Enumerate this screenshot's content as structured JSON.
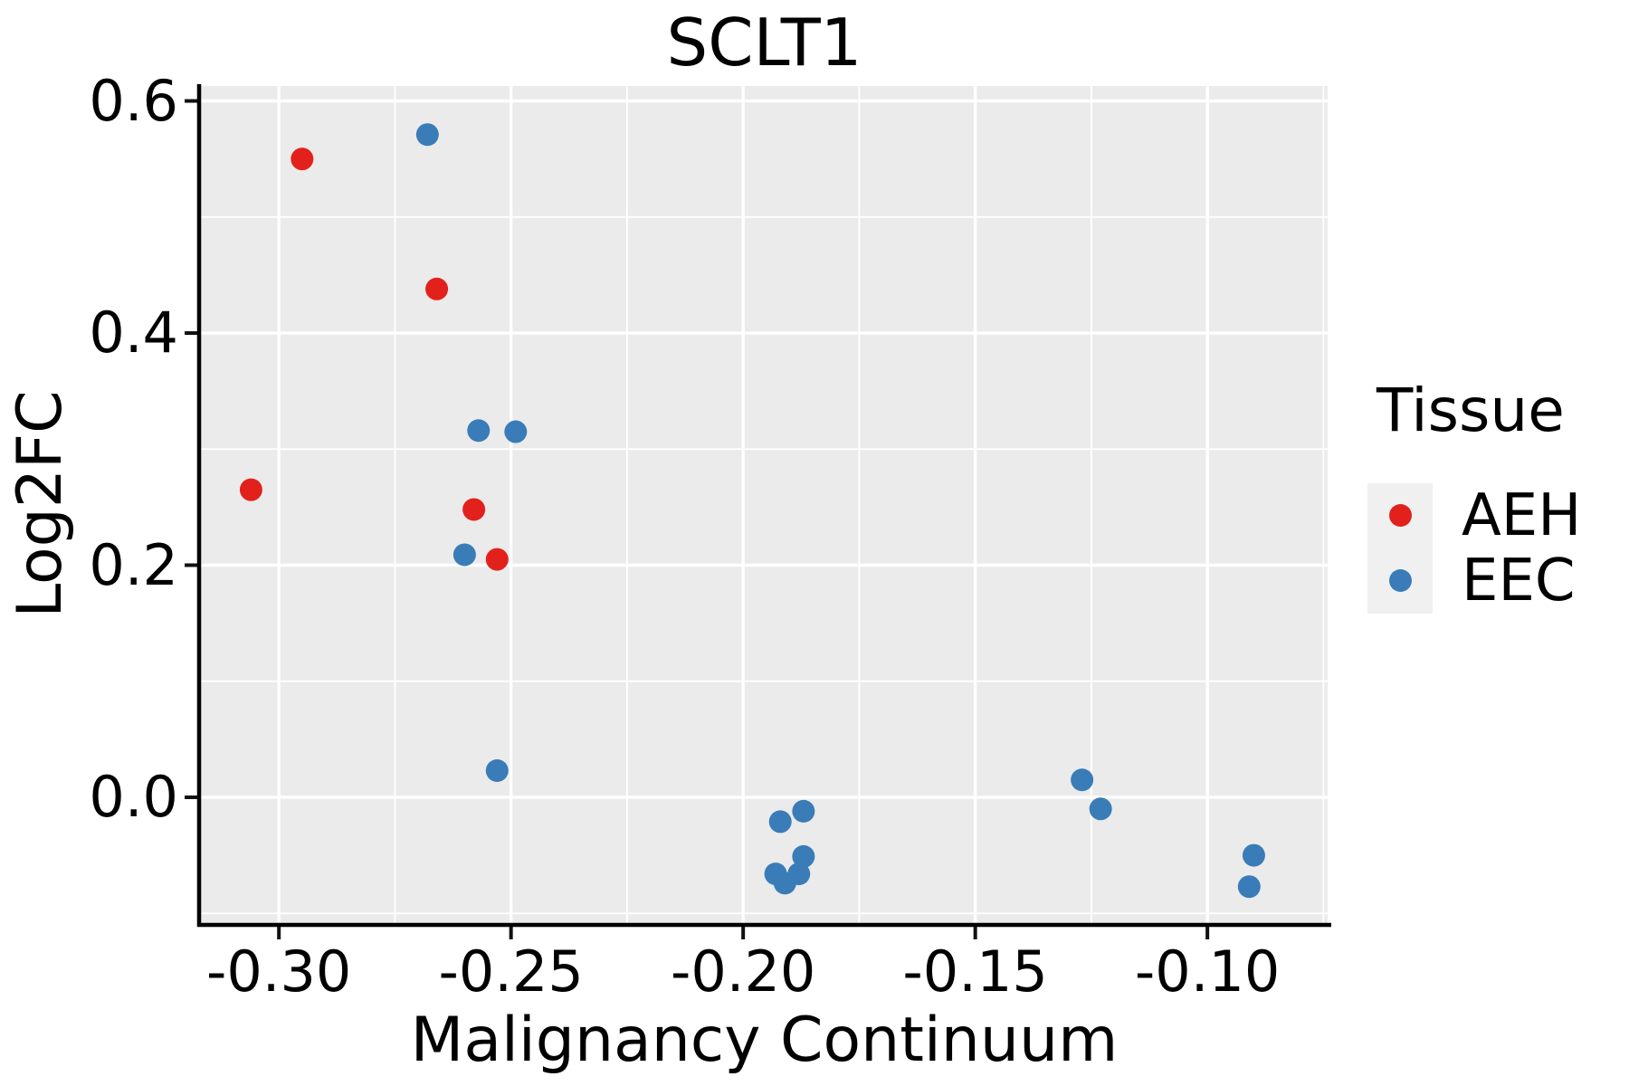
{
  "title": "SCLT1",
  "x_axis_label": "Malignancy Continuum",
  "y_axis_label": "Log2FC",
  "legend": {
    "title": "Tissue",
    "entries": [
      {
        "label": "AEH",
        "color": "#E3211C"
      },
      {
        "label": "EEC",
        "color": "#3A7CB8"
      }
    ]
  },
  "axes": {
    "x": {
      "tick_values": [
        -0.3,
        -0.25,
        -0.2,
        -0.15,
        -0.1
      ],
      "tick_labels": [
        "-0.30",
        "-0.25",
        "-0.20",
        "-0.15",
        "-0.10"
      ],
      "minor_tick_values": [
        -0.275,
        -0.225,
        -0.175,
        -0.125,
        -0.075
      ]
    },
    "y": {
      "tick_values": [
        0.0,
        0.2,
        0.4,
        0.6
      ],
      "tick_labels": [
        "0.0",
        "0.2",
        "0.4",
        "0.6"
      ],
      "minor_tick_values": [
        -0.1,
        0.1,
        0.3,
        0.5
      ]
    }
  },
  "chart_data": {
    "type": "scatter",
    "title": "SCLT1",
    "xlabel": "Malignancy Continuum",
    "ylabel": "Log2FC",
    "xlim": [
      -0.3168,
      -0.0741
    ],
    "ylim": [
      -0.1084,
      0.6129
    ],
    "grid": "major+minor",
    "legend_position": "right",
    "panel_background": "#EBEBEB",
    "grid_color": "#FFFFFF",
    "point_radius_px": 12.5,
    "series": [
      {
        "name": "AEH",
        "color": "#E3211C",
        "points": [
          {
            "x": -0.295,
            "y": 0.55
          },
          {
            "x": -0.266,
            "y": 0.438
          },
          {
            "x": -0.306,
            "y": 0.265
          },
          {
            "x": -0.258,
            "y": 0.248
          },
          {
            "x": -0.253,
            "y": 0.205
          }
        ]
      },
      {
        "name": "EEC",
        "color": "#3A7CB8",
        "points": [
          {
            "x": -0.268,
            "y": 0.571
          },
          {
            "x": -0.257,
            "y": 0.316
          },
          {
            "x": -0.249,
            "y": 0.315
          },
          {
            "x": -0.26,
            "y": 0.209
          },
          {
            "x": -0.253,
            "y": 0.023
          },
          {
            "x": -0.192,
            "y": -0.021
          },
          {
            "x": -0.187,
            "y": -0.012
          },
          {
            "x": -0.187,
            "y": -0.051
          },
          {
            "x": -0.193,
            "y": -0.066
          },
          {
            "x": -0.191,
            "y": -0.074
          },
          {
            "x": -0.188,
            "y": -0.066
          },
          {
            "x": -0.127,
            "y": 0.015
          },
          {
            "x": -0.123,
            "y": -0.01
          },
          {
            "x": -0.09,
            "y": -0.05
          },
          {
            "x": -0.091,
            "y": -0.077
          }
        ]
      }
    ]
  }
}
